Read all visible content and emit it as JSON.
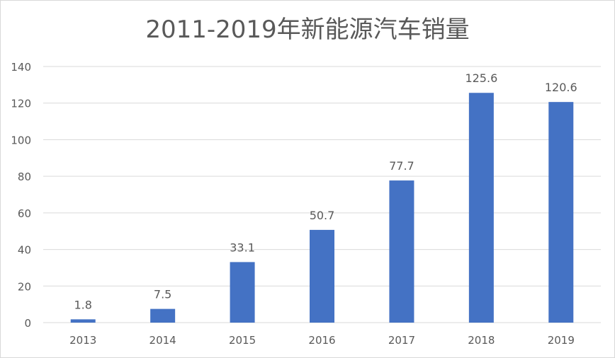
{
  "chart_data": {
    "type": "bar",
    "title": "2011-2019年新能源汽车销量",
    "categories": [
      "2013",
      "2014",
      "2015",
      "2016",
      "2017",
      "2018",
      "2019"
    ],
    "values": [
      1.8,
      7.5,
      33.1,
      50.7,
      77.7,
      125.6,
      120.6
    ],
    "data_labels": [
      "1.8",
      "7.5",
      "33.1",
      "50.7",
      "77.7",
      "125.6",
      "120.6"
    ],
    "y_ticks": [
      "0",
      "20",
      "40",
      "60",
      "80",
      "100",
      "120",
      "140"
    ],
    "xlabel": "",
    "ylabel": "",
    "ylim": [
      0,
      140
    ],
    "grid": true,
    "legend": "none",
    "bar_color": "#4472C4",
    "gridline_color": "#d9d9d9",
    "text_color": "#595959"
  }
}
